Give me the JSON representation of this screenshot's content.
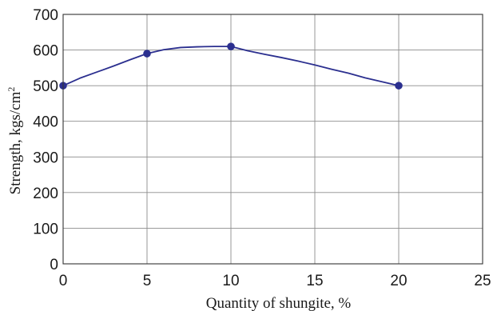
{
  "chart_data": {
    "type": "line",
    "title": "",
    "xlabel": "Quantity of shungite, %",
    "ylabel": "Strength, kgs/cm",
    "ylabel_superscript": "2",
    "xlim": [
      0,
      25
    ],
    "ylim": [
      0,
      700
    ],
    "xticks": [
      0,
      5,
      10,
      15,
      20,
      25
    ],
    "yticks": [
      0,
      100,
      200,
      300,
      400,
      500,
      600,
      700
    ],
    "grid": true,
    "legend": "none",
    "series": [
      {
        "color": "#2b2f8f",
        "curve": {
          "x": [
            0,
            1,
            2,
            3,
            4,
            5,
            6,
            7,
            8,
            9,
            10,
            11,
            12,
            13,
            14,
            15,
            16,
            17,
            18,
            19,
            20
          ],
          "y": [
            500,
            521,
            538,
            555,
            573,
            590,
            601,
            607,
            609,
            610,
            610,
            598,
            588,
            579,
            569,
            558,
            546,
            535,
            522,
            511,
            500
          ]
        },
        "markers": {
          "x": [
            0,
            5,
            10,
            20
          ],
          "y": [
            500,
            590,
            610,
            500
          ]
        }
      }
    ]
  }
}
